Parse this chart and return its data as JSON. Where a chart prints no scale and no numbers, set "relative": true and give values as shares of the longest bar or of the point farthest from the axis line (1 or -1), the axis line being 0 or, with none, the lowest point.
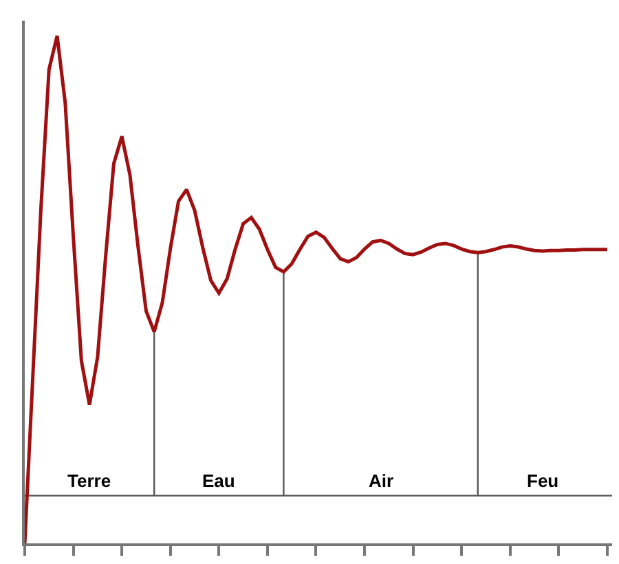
{
  "chart_data": {
    "type": "line",
    "relative": true,
    "categories": [
      null,
      null,
      null,
      null,
      null,
      null,
      null,
      null,
      null,
      null,
      null,
      null,
      null,
      null,
      null,
      null,
      null,
      null,
      null,
      null,
      null,
      null,
      null,
      null,
      null,
      null,
      null,
      null,
      null,
      null,
      null,
      null,
      null,
      null,
      null,
      null,
      null,
      null,
      null,
      null,
      null,
      null,
      null,
      null,
      null,
      null,
      null,
      null,
      null,
      null,
      null,
      null,
      null,
      null,
      null,
      null,
      null,
      null,
      null,
      null,
      null,
      null,
      null,
      null,
      null,
      null,
      null,
      null,
      null,
      null,
      null,
      null,
      null
    ],
    "series": [
      {
        "color": "#a01010",
        "values": [
          0,
          0.33,
          0.66,
          0.934,
          1,
          0.868,
          0.605,
          0.36,
          0.273,
          0.367,
          0.566,
          0.748,
          0.802,
          0.726,
          0.585,
          0.458,
          0.417,
          0.474,
          0.581,
          0.674,
          0.697,
          0.656,
          0.583,
          0.518,
          0.493,
          0.521,
          0.579,
          0.63,
          0.642,
          0.619,
          0.579,
          0.544,
          0.535,
          0.551,
          0.579,
          0.605,
          0.613,
          0.603,
          0.581,
          0.561,
          0.555,
          0.563,
          0.58,
          0.594,
          0.597,
          0.591,
          0.58,
          0.571,
          0.569,
          0.574,
          0.582,
          0.589,
          0.591,
          0.587,
          0.58,
          0.575,
          0.573,
          0.575,
          0.579,
          0.584,
          0.586,
          0.584,
          0.58,
          0.577,
          0.576,
          0.577,
          0.577,
          0.578,
          0.578,
          0.579,
          0.579,
          0.579,
          0.579
        ]
      }
    ],
    "ref_lines": [
      {
        "axis": "y",
        "value": 0.094,
        "color": "#555555"
      }
    ],
    "annotations": [
      "Terre",
      "Eau",
      "Air",
      "Feu"
    ],
    "grid": false,
    "marker": "none",
    "line_style": "solid"
  }
}
